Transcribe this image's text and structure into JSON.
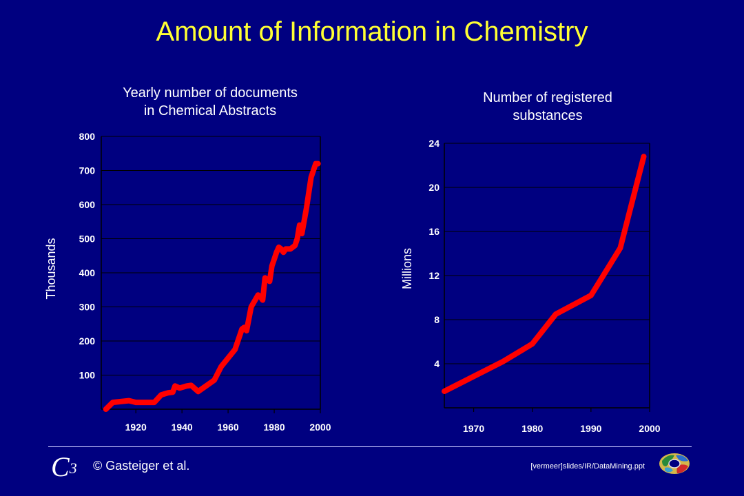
{
  "slide": {
    "title": "Amount of Information in Chemistry",
    "copyright": "© Gasteiger et al.",
    "logo_text": "C",
    "logo_sup": "3",
    "file_path": "[vermeer]slides/IR/DataMining.ppt"
  },
  "colors": {
    "background": "#000080",
    "title": "#ffff33",
    "line": "#ff0000",
    "text": "#ffffff"
  },
  "chart_data": [
    {
      "type": "line",
      "title": "Yearly number of documents\nin Chemical Abstracts",
      "xlabel": "",
      "ylabel": "Thousands",
      "xlim": [
        1905,
        2000
      ],
      "ylim": [
        0,
        800
      ],
      "xticks": [
        1920,
        1940,
        1960,
        1980,
        2000
      ],
      "yticks": [
        100,
        200,
        300,
        400,
        500,
        600,
        700,
        800
      ],
      "grid": true,
      "series": [
        {
          "x": [
            1907,
            1910,
            1917,
            1920,
            1925,
            1928,
            1931,
            1934,
            1936,
            1937,
            1939,
            1942,
            1944,
            1947,
            1954,
            1957,
            1963,
            1966,
            1967,
            1968,
            1970,
            1973,
            1974,
            1975,
            1976,
            1978,
            1979,
            1980,
            1981,
            1982,
            1983,
            1984,
            1985,
            1987,
            1989,
            1990,
            1991,
            1992,
            1994,
            1996,
            1998,
            1999
          ],
          "y": [
            0,
            20,
            25,
            20,
            20,
            20,
            42,
            48,
            50,
            68,
            62,
            68,
            70,
            52,
            85,
            125,
            175,
            235,
            240,
            230,
            300,
            335,
            330,
            320,
            385,
            375,
            420,
            440,
            460,
            475,
            470,
            460,
            470,
            470,
            480,
            500,
            540,
            515,
            590,
            680,
            720,
            720
          ]
        }
      ]
    },
    {
      "type": "line",
      "title": "Number of registered\nsubstances",
      "xlabel": "",
      "ylabel": "Millions",
      "xlim": [
        1965,
        2000
      ],
      "ylim": [
        0,
        24
      ],
      "xticks": [
        1970,
        1980,
        1990,
        2000
      ],
      "yticks": [
        4,
        8,
        12,
        16,
        20,
        24
      ],
      "grid": true,
      "series": [
        {
          "x": [
            1965,
            1975,
            1980,
            1984,
            1990,
            1995,
            1999
          ],
          "y": [
            1.5,
            4.2,
            5.8,
            8.5,
            10.2,
            14.5,
            22.8
          ]
        }
      ]
    }
  ]
}
